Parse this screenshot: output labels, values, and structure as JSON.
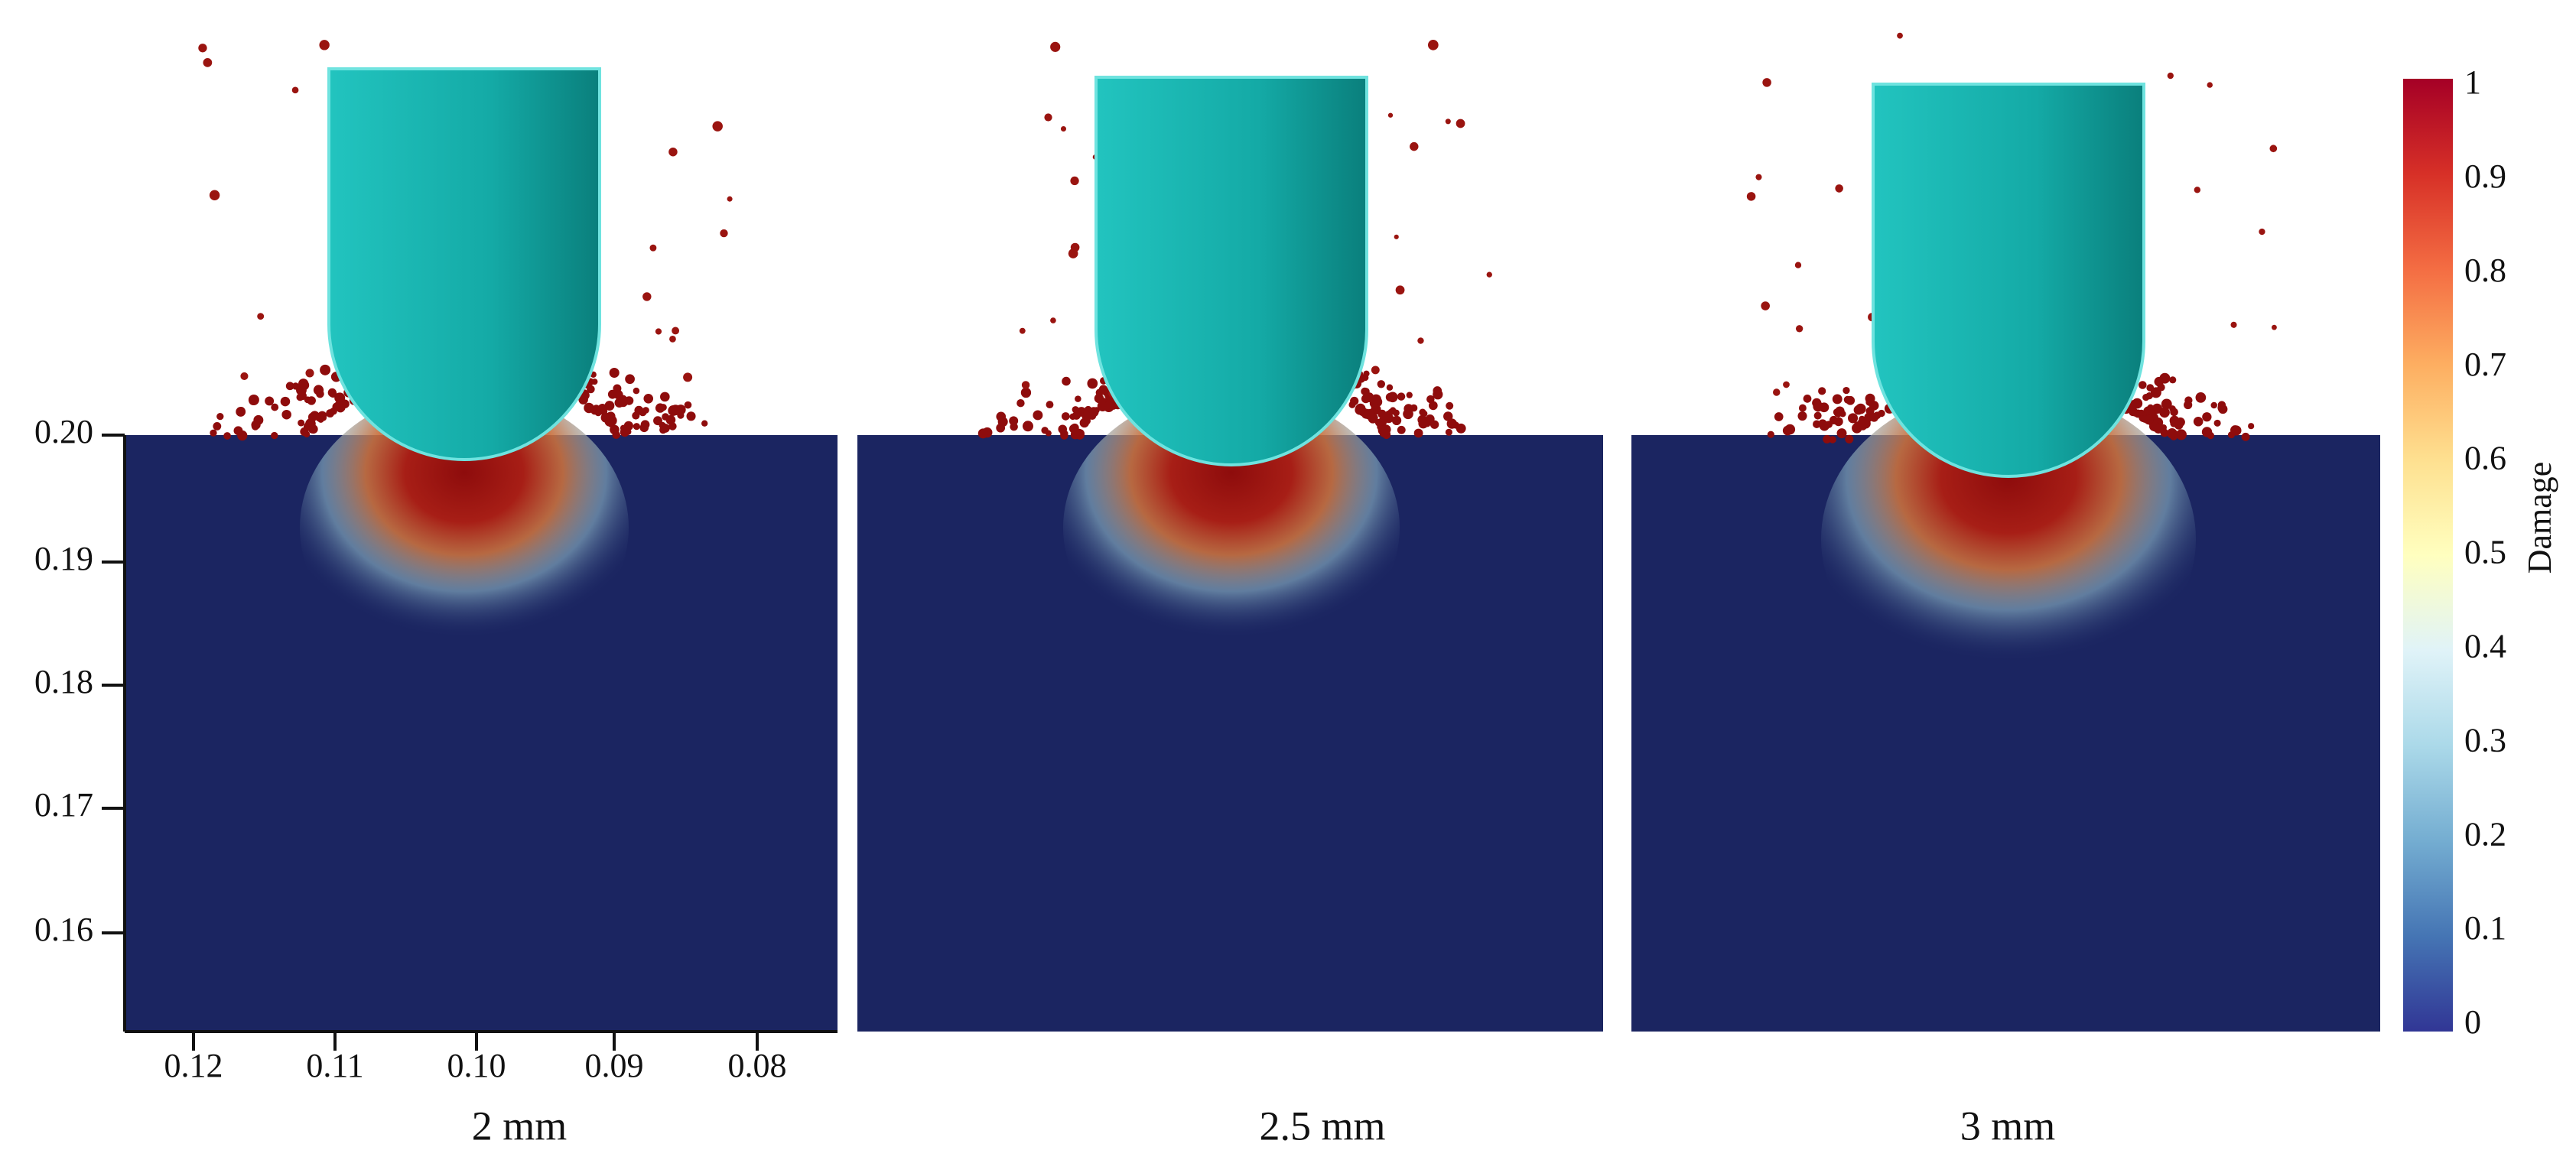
{
  "y_axis": {
    "ticks": [
      "0.20",
      "0.19",
      "0.18",
      "0.17",
      "0.16"
    ]
  },
  "x_axis": {
    "ticks": [
      "0.12",
      "0.11",
      "0.10",
      "0.09",
      "0.08"
    ]
  },
  "panels": [
    {
      "label": "2 mm"
    },
    {
      "label": "2.5 mm"
    },
    {
      "label": "3 mm"
    }
  ],
  "colorbar": {
    "label": "Damage",
    "ticks": [
      "1",
      "0.9",
      "0.8",
      "0.7",
      "0.6",
      "0.5",
      "0.4",
      "0.3",
      "0.2",
      "0.1",
      "0"
    ]
  }
}
